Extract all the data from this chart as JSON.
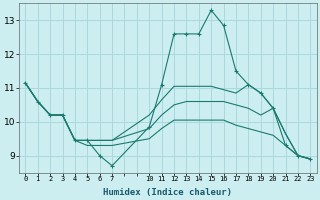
{
  "xlabel": "Humidex (Indice chaleur)",
  "bg_color": "#cceef0",
  "grid_color": "#aad8dc",
  "line_color": "#1a7a6e",
  "xlim": [
    -0.5,
    23.5
  ],
  "ylim": [
    8.5,
    13.5
  ],
  "yticks": [
    9,
    10,
    11,
    12,
    13
  ],
  "xticks": [
    0,
    1,
    2,
    3,
    4,
    5,
    6,
    7,
    10,
    11,
    12,
    13,
    14,
    15,
    16,
    17,
    18,
    19,
    20,
    21,
    22,
    23
  ],
  "lines": [
    {
      "x": [
        0,
        1,
        2,
        3,
        4,
        5,
        6,
        7,
        10,
        11,
        12,
        13,
        14,
        15,
        16,
        17,
        18,
        19,
        20,
        21,
        22,
        23
      ],
      "y": [
        11.15,
        10.6,
        10.2,
        10.2,
        9.45,
        9.45,
        9.0,
        8.7,
        9.85,
        11.1,
        12.6,
        12.6,
        12.6,
        13.3,
        12.85,
        11.5,
        11.1,
        10.85,
        10.4,
        9.3,
        9.0,
        8.9
      ],
      "marker": true
    },
    {
      "x": [
        0,
        1,
        2,
        3,
        4,
        5,
        6,
        7,
        10,
        11,
        12,
        13,
        14,
        15,
        16,
        17,
        18,
        19,
        20,
        21,
        22,
        23
      ],
      "y": [
        11.15,
        10.6,
        10.2,
        10.2,
        9.45,
        9.45,
        9.45,
        9.45,
        10.2,
        10.65,
        11.05,
        11.05,
        11.05,
        11.05,
        10.95,
        10.85,
        11.1,
        10.85,
        10.4,
        9.65,
        9.0,
        8.9
      ],
      "marker": false
    },
    {
      "x": [
        0,
        1,
        2,
        3,
        4,
        5,
        6,
        7,
        10,
        11,
        12,
        13,
        14,
        15,
        16,
        17,
        18,
        19,
        20,
        21,
        22,
        23
      ],
      "y": [
        11.15,
        10.6,
        10.2,
        10.2,
        9.45,
        9.45,
        9.45,
        9.45,
        9.8,
        10.2,
        10.5,
        10.6,
        10.6,
        10.6,
        10.6,
        10.5,
        10.4,
        10.2,
        10.4,
        9.65,
        9.0,
        8.9
      ],
      "marker": false
    },
    {
      "x": [
        0,
        1,
        2,
        3,
        4,
        5,
        6,
        7,
        10,
        11,
        12,
        13,
        14,
        15,
        16,
        17,
        18,
        19,
        20,
        21,
        22,
        23
      ],
      "y": [
        11.15,
        10.6,
        10.2,
        10.2,
        9.45,
        9.3,
        9.3,
        9.3,
        9.5,
        9.8,
        10.05,
        10.05,
        10.05,
        10.05,
        10.05,
        9.9,
        9.8,
        9.7,
        9.6,
        9.3,
        9.0,
        8.9
      ],
      "marker": false
    }
  ]
}
